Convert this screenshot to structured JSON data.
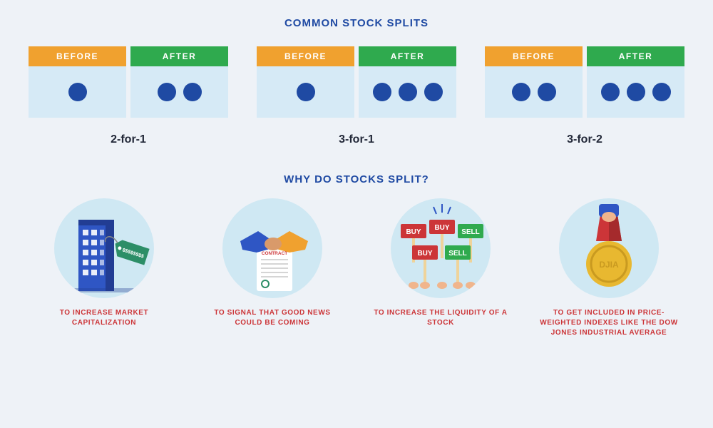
{
  "colors": {
    "page_bg": "#eef2f7",
    "heading": "#1f4aa3",
    "before_bg": "#f0a12f",
    "after_bg": "#2faa4e",
    "box_bg": "#d6eaf6",
    "dot": "#1f4aa3",
    "ratio_text": "#222838",
    "reason_text": "#cc3538",
    "circle_bg": "#cfe8f3",
    "header_text": "#ffffff"
  },
  "headings": {
    "title": "COMMON STOCK SPLITS",
    "subtitle": "WHY DO STOCKS SPLIT?"
  },
  "before_after_labels": {
    "before": "BEFORE",
    "after": "AFTER"
  },
  "splits": [
    {
      "label": "2-for-1",
      "before": 1,
      "after": 2
    },
    {
      "label": "3-for-1",
      "before": 1,
      "after": 3
    },
    {
      "label": "3-for-2",
      "before": 2,
      "after": 3
    }
  ],
  "reasons": [
    {
      "label": "TO INCREASE MARKET CAPITALIZATION",
      "icon": "building-tag"
    },
    {
      "label": "TO SIGNAL THAT GOOD NEWS COULD BE COMING",
      "icon": "handshake-contract"
    },
    {
      "label": "TO INCREASE THE LIQUIDITY OF A STOCK",
      "icon": "buy-sell-signs"
    },
    {
      "label": "TO GET INCLUDED IN PRICE-WEIGHTED INDEXES LIKE THE DOW JONES INDUSTRIAL AVERAGE",
      "icon": "djia-medal"
    }
  ],
  "icon_text": {
    "price_tag": "$$$$$$$$",
    "contract": "CONTRACT",
    "buy": "BUY",
    "sell": "SELL",
    "djia": "DJIA"
  },
  "icon_colors": {
    "building": "#2f56c4",
    "building_shadow": "#223d93",
    "tag": "#2c8e67",
    "tag_text": "#ffffff",
    "hand_left": "#2f56c4",
    "hand_right": "#f0a12f",
    "paper": "#ffffff",
    "paper_line": "#d5d5d5",
    "contract_text": "#cc3538",
    "seal": "#2c8e67",
    "buy_sign": "#cc3538",
    "sell_sign": "#2faa4e",
    "sign_text": "#ffffff",
    "stick": "#efd39a",
    "hand_skin": "#f0b58c",
    "ribbon": "#cc3538",
    "medal": "#e8b830",
    "medal_ring": "#c99a20",
    "cuff": "#2f56c4",
    "spark": "#2f56c4"
  }
}
